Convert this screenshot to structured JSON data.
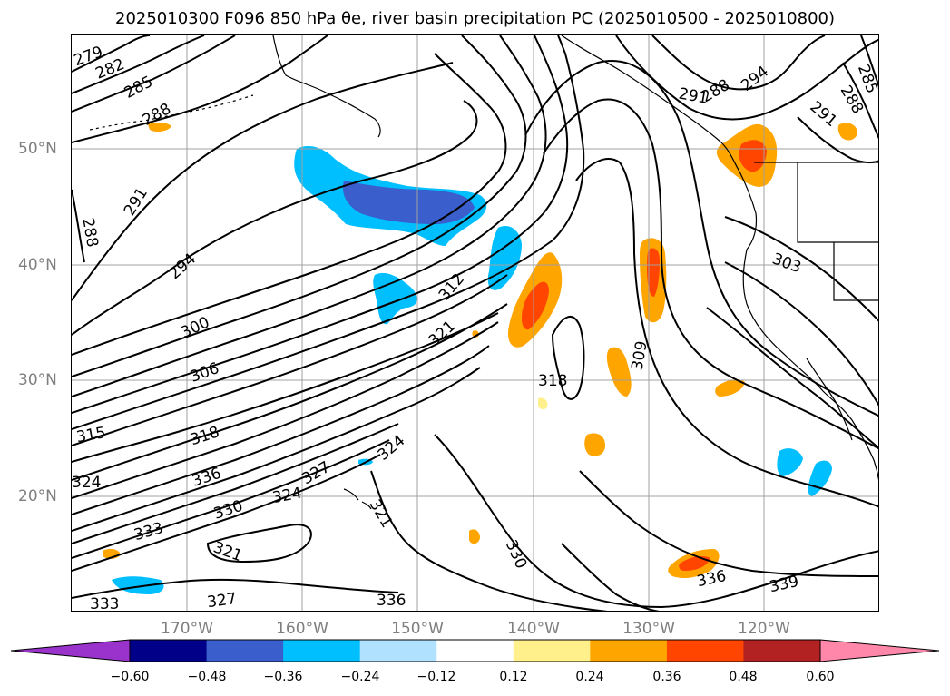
{
  "title": "2025010300 F096 850 hPa θe, river basin precipitation PC (2025010500 - 2025010800)",
  "map": {
    "lat_ticks": [
      "50°N",
      "40°N",
      "30°N",
      "20°N"
    ],
    "lon_ticks": [
      "170°W",
      "160°W",
      "150°W",
      "140°W",
      "130°W",
      "120°W"
    ],
    "contour_labels": [
      "279",
      "282",
      "285",
      "288",
      "288",
      "291",
      "294",
      "300",
      "306",
      "312",
      "321",
      "315",
      "318",
      "324",
      "336",
      "330",
      "333",
      "321",
      "327",
      "324",
      "321",
      "333",
      "336",
      "318",
      "309",
      "330",
      "336",
      "339",
      "303",
      "291",
      "288",
      "294",
      "288",
      "285",
      "291",
      "324",
      "327"
    ],
    "contour_color": "#000000",
    "coastline_color": "#000000"
  },
  "colorbar": {
    "ticks": [
      "−0.60",
      "−0.48",
      "−0.36",
      "−0.24",
      "−0.12",
      "0.12",
      "0.24",
      "0.36",
      "0.48",
      "0.60"
    ],
    "colors": [
      "#9933cc",
      "#000088",
      "#3a5fcd",
      "#00bfff",
      "#b0e2ff",
      "#ffffff",
      "#fff08c",
      "#ffa500",
      "#ff4500",
      "#b22222",
      "#ff88aa"
    ],
    "extend": "both"
  }
}
